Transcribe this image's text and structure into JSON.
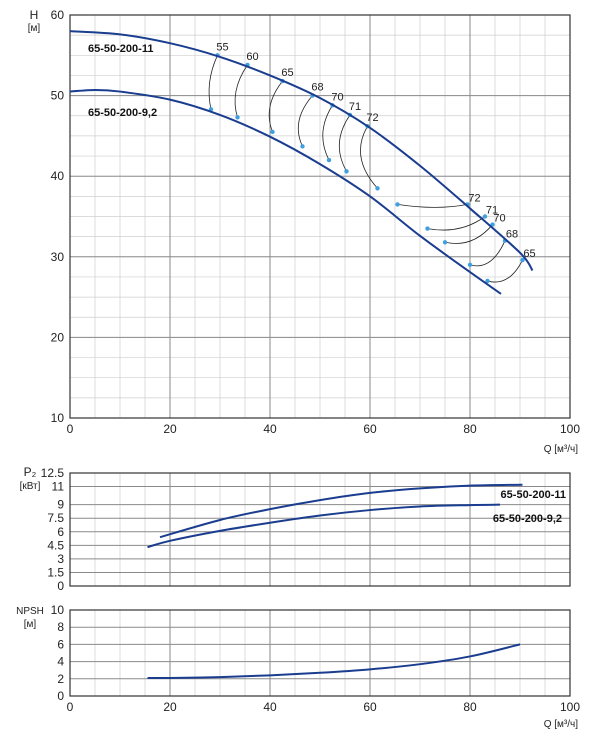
{
  "chart_data": [
    {
      "type": "line",
      "name": "head",
      "ylabel": "H",
      "yunit": "[м]",
      "xlabel_unit": "Q [м³/ч]",
      "xlim": [
        0,
        100
      ],
      "ylim": [
        10,
        60
      ],
      "xticks": [
        "0",
        "20",
        "40",
        "60",
        "80",
        "100"
      ],
      "yticks": [
        "10",
        "20",
        "30",
        "40",
        "50",
        "60"
      ],
      "grid": true,
      "series": [
        {
          "name": "65-50-200-11",
          "x": [
            0,
            10,
            20,
            30,
            40,
            50,
            60,
            70,
            80,
            90,
            92.5
          ],
          "y": [
            58.0,
            57.6,
            56.5,
            54.8,
            52.5,
            49.7,
            46.0,
            41.3,
            36.0,
            30.5,
            28.3
          ]
        },
        {
          "name": "65-50-200-9,2",
          "x": [
            0,
            5,
            10,
            20,
            30,
            40,
            50,
            60,
            70,
            80,
            86.2
          ],
          "y": [
            50.5,
            50.7,
            50.5,
            49.5,
            47.6,
            44.9,
            41.5,
            37.5,
            32.6,
            28.1,
            25.4
          ]
        }
      ],
      "efficiency_labels": [
        "55",
        "60",
        "65",
        "68",
        "70",
        "71",
        "72",
        "72",
        "71",
        "70",
        "68",
        "65"
      ],
      "efficiency_lines": [
        {
          "label": "55",
          "q_top": 29.5,
          "h_top": 55.0,
          "q_bot": 28.2,
          "h_bot": 48.3
        },
        {
          "label": "60",
          "q_top": 35.5,
          "h_top": 53.8,
          "q_bot": 33.5,
          "h_bot": 47.3
        },
        {
          "label": "65",
          "q_top": 42.5,
          "h_top": 51.8,
          "q_bot": 40.5,
          "h_bot": 45.5
        },
        {
          "label": "68",
          "q_top": 48.5,
          "h_top": 50.0,
          "q_bot": 46.5,
          "h_bot": 43.7
        },
        {
          "label": "70",
          "q_top": 52.5,
          "h_top": 48.8,
          "q_bot": 51.8,
          "h_bot": 42.0
        },
        {
          "label": "71",
          "q_top": 56.0,
          "h_top": 47.6,
          "q_bot": 55.3,
          "h_bot": 40.6
        },
        {
          "label": "72",
          "q_top": 59.5,
          "h_top": 46.2,
          "q_bot": 61.5,
          "h_bot": 38.5
        },
        {
          "label": "72",
          "q_top": 79.5,
          "h_top": 36.5,
          "q_bot": 65.5,
          "h_bot": 36.5
        },
        {
          "label": "71",
          "q_top": 83.0,
          "h_top": 35.0,
          "q_bot": 71.5,
          "h_bot": 33.5
        },
        {
          "label": "70",
          "q_top": 84.5,
          "h_top": 34.0,
          "q_bot": 75.0,
          "h_bot": 31.8
        },
        {
          "label": "68",
          "q_top": 87.0,
          "h_top": 32.0,
          "q_bot": 80.0,
          "h_bot": 29.0
        },
        {
          "label": "65",
          "q_top": 90.5,
          "h_top": 29.6,
          "q_bot": 83.5,
          "h_bot": 27.0
        }
      ]
    },
    {
      "type": "line",
      "name": "power",
      "ylabel": "P₂",
      "yunit": "[кВт]",
      "xlim": [
        0,
        100
      ],
      "ylim": [
        0,
        12.5
      ],
      "yticks": [
        "0",
        "1.5",
        "3",
        "4.5",
        "6",
        "7.5",
        "9",
        "11",
        "12.5"
      ],
      "grid": true,
      "series": [
        {
          "name": "65-50-200-11",
          "x": [
            18,
            30,
            40,
            50,
            60,
            70,
            80,
            90.5
          ],
          "y": [
            5.4,
            7.3,
            8.5,
            9.5,
            10.3,
            10.8,
            11.1,
            11.2
          ]
        },
        {
          "name": "65-50-200-9,2",
          "x": [
            15.5,
            20,
            30,
            40,
            50,
            60,
            70,
            80,
            86
          ],
          "y": [
            4.3,
            5.0,
            6.1,
            7.0,
            7.8,
            8.4,
            8.8,
            8.95,
            9.0
          ]
        }
      ]
    },
    {
      "type": "line",
      "name": "npsh",
      "ylabel": "NPSH",
      "yunit": "[м]",
      "xlabel_unit": "Q [м³/ч]",
      "xlim": [
        0,
        100
      ],
      "ylim": [
        0,
        10
      ],
      "xticks": [
        "0",
        "20",
        "40",
        "60",
        "80",
        "100"
      ],
      "yticks": [
        "0",
        "2",
        "4",
        "6",
        "8",
        "10"
      ],
      "grid": true,
      "series": [
        {
          "x": [
            15.5,
            20,
            30,
            40,
            50,
            60,
            70,
            80,
            90
          ],
          "y": [
            2.1,
            2.1,
            2.2,
            2.4,
            2.7,
            3.1,
            3.7,
            4.6,
            6.0
          ]
        }
      ]
    }
  ],
  "colors": {
    "curve": "#1a3d8f",
    "marker": "#3fa0e0",
    "grid_major": "#8a8a8a",
    "grid_minor": "#cfcfcf",
    "axis": "#333333"
  }
}
